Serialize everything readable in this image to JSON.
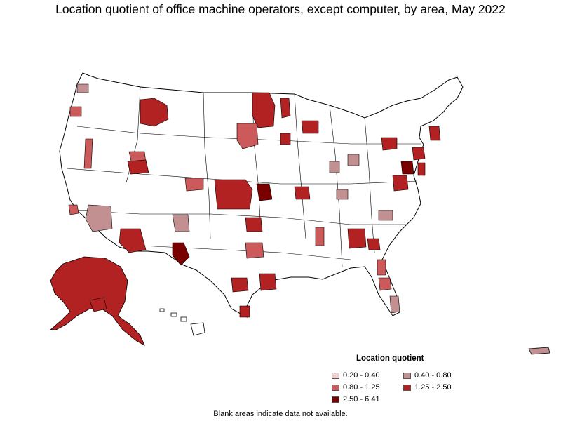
{
  "title": "Location quotient of office machine operators, except computer, by area, May 2022",
  "legend": {
    "title": "Location quotient",
    "items": [
      {
        "label": "0.20 - 0.40",
        "color": "#f2cfcf"
      },
      {
        "label": "0.40 - 0.80",
        "color": "#c29090"
      },
      {
        "label": "0.80 - 1.25",
        "color": "#cc5a5a"
      },
      {
        "label": "1.25 - 2.50",
        "color": "#b22222"
      },
      {
        "label": "2.50 - 6.41",
        "color": "#7a0000"
      }
    ]
  },
  "footnote": "Blank areas indicate data not available.",
  "colors": {
    "no_data": "#ffffff",
    "border": "#000000"
  }
}
